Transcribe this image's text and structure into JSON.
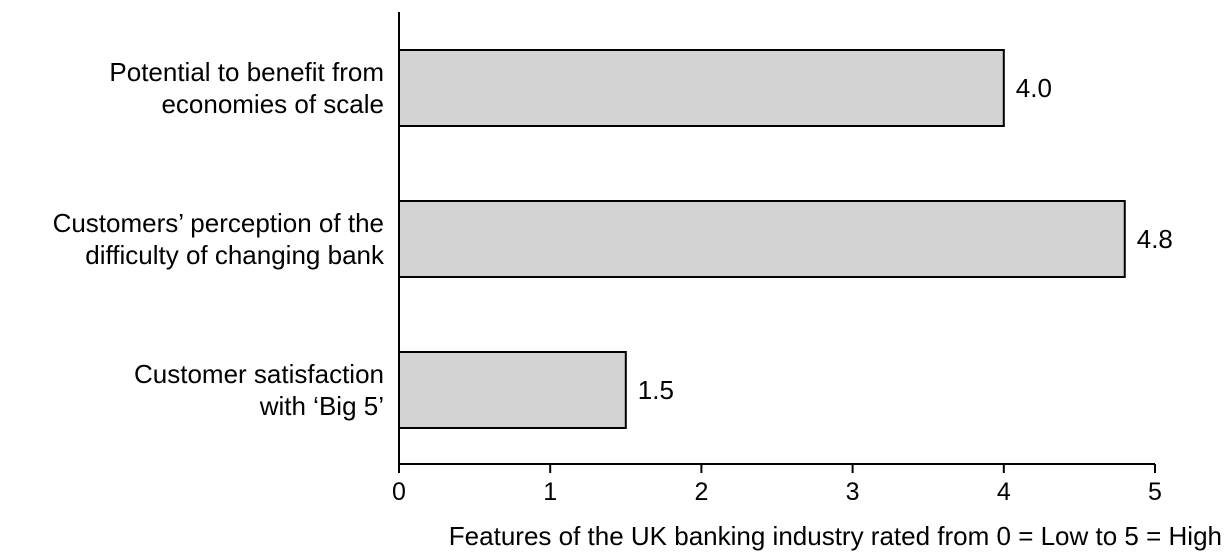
{
  "chart_data": {
    "type": "bar",
    "orientation": "horizontal",
    "categories": [
      [
        "Potential to benefit from",
        "economies of scale"
      ],
      [
        "Customers’ perception of the",
        "difficulty of changing bank"
      ],
      [
        "Customer satisfaction",
        "with ‘Big 5’"
      ]
    ],
    "values": [
      4.0,
      4.8,
      1.5
    ],
    "data_labels": [
      "4.0",
      "4.8",
      "1.5"
    ],
    "xlim": [
      0,
      5
    ],
    "xticks": [
      0,
      1,
      2,
      3,
      4,
      5
    ],
    "xtick_labels": [
      "0",
      "1",
      "2",
      "3",
      "4",
      "5"
    ],
    "xlabel": "Features of the UK banking industry rated from 0 = Low to 5 = High",
    "ylabel": "",
    "title": "",
    "grid": false,
    "legend": "none",
    "colors": {
      "bar_fill": "#d3d3d3",
      "bar_stroke": "#000000"
    }
  }
}
